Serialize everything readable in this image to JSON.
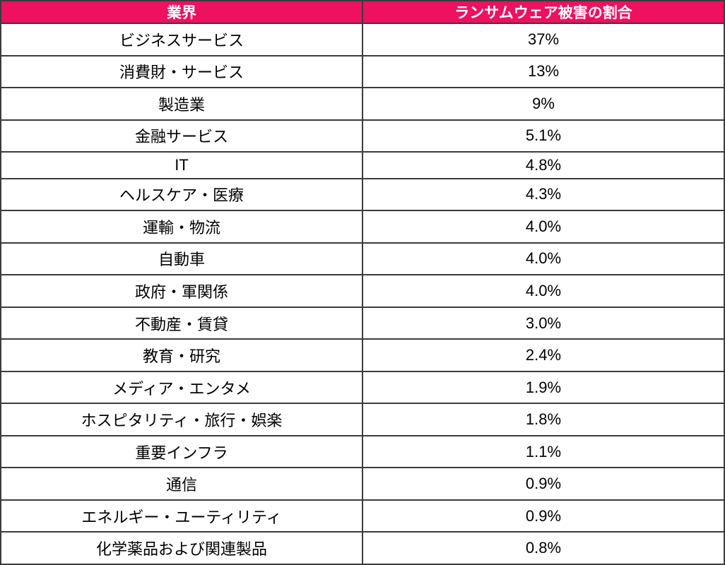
{
  "colors": {
    "header_bg": "#ED115F",
    "header_text": "#FFFFFF",
    "border": "#3B3B3B",
    "row_bg": "#FFFFFF",
    "row_text": "#000000"
  },
  "table": {
    "headers": [
      "業界",
      "ランサムウェア被害の割合"
    ],
    "rows": [
      [
        "ビジネスサービス",
        "37%"
      ],
      [
        "消費財・サービス",
        "13%"
      ],
      [
        "製造業",
        "9%"
      ],
      [
        "金融サービス",
        "5.1%"
      ],
      [
        "IT",
        "4.8%"
      ],
      [
        "ヘルスケア・医療",
        "4.3%"
      ],
      [
        "運輸・物流",
        "4.0%"
      ],
      [
        "自動車",
        "4.0%"
      ],
      [
        "政府・軍関係",
        "4.0%"
      ],
      [
        "不動産・賃貸",
        "3.0%"
      ],
      [
        "教育・研究",
        "2.4%"
      ],
      [
        "メディア・エンタメ",
        "1.9%"
      ],
      [
        "ホスピタリティ・旅行・娯楽",
        "1.8%"
      ],
      [
        "重要インフラ",
        "1.1%"
      ],
      [
        "通信",
        "0.9%"
      ],
      [
        "エネルギー・ユーティリティ",
        "0.9%"
      ],
      [
        "化学薬品および関連製品",
        "0.8%"
      ]
    ]
  },
  "chart_data": {
    "type": "table",
    "columns": [
      "業界",
      "ランサムウェア被害の割合"
    ],
    "categories": [
      "ビジネスサービス",
      "消費財・サービス",
      "製造業",
      "金融サービス",
      "IT",
      "ヘルスケア・医療",
      "運輸・物流",
      "自動車",
      "政府・軍関係",
      "不動産・賃貸",
      "教育・研究",
      "メディア・エンタメ",
      "ホスピタリティ・旅行・娯楽",
      "重要インフラ",
      "通信",
      "エネルギー・ユーティリティ",
      "化学薬品および関連製品"
    ],
    "values_percent": [
      37,
      13,
      9,
      5.1,
      4.8,
      4.3,
      4.0,
      4.0,
      4.0,
      3.0,
      2.4,
      1.9,
      1.8,
      1.1,
      0.9,
      0.9,
      0.8
    ],
    "value_labels": [
      "37%",
      "13%",
      "9%",
      "5.1%",
      "4.8%",
      "4.3%",
      "4.0%",
      "4.0%",
      "4.0%",
      "3.0%",
      "2.4%",
      "1.9%",
      "1.8%",
      "1.1%",
      "0.9%",
      "0.9%",
      "0.8%"
    ]
  }
}
